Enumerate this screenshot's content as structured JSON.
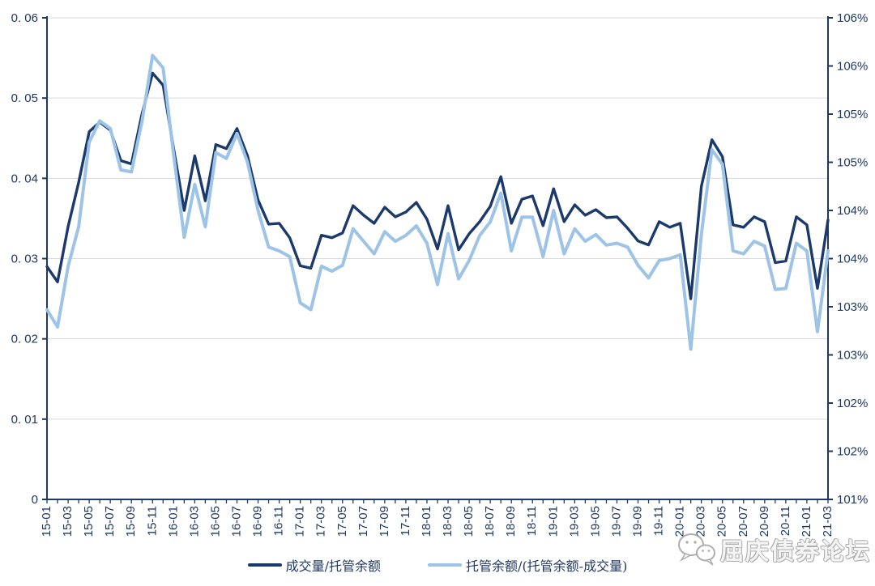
{
  "chart_data": {
    "type": "line",
    "title": "",
    "months": [
      "15-01",
      "15-02",
      "15-03",
      "15-04",
      "15-05",
      "15-06",
      "15-07",
      "15-08",
      "15-09",
      "15-10",
      "15-11",
      "15-12",
      "16-01",
      "16-02",
      "16-03",
      "16-04",
      "16-05",
      "16-06",
      "16-07",
      "16-08",
      "16-09",
      "16-10",
      "16-11",
      "16-12",
      "17-01",
      "17-02",
      "17-03",
      "17-04",
      "17-05",
      "17-06",
      "17-07",
      "17-08",
      "17-09",
      "17-10",
      "17-11",
      "17-12",
      "18-01",
      "18-02",
      "18-03",
      "18-04",
      "18-05",
      "18-06",
      "18-07",
      "18-08",
      "18-09",
      "18-10",
      "18-11",
      "18-12",
      "19-01",
      "19-02",
      "19-03",
      "19-04",
      "19-05",
      "19-06",
      "19-07",
      "19-08",
      "19-09",
      "19-10",
      "19-11",
      "19-12",
      "20-01",
      "20-02",
      "20-03",
      "20-04",
      "20-05",
      "20-06",
      "20-07",
      "20-08",
      "20-09",
      "20-10",
      "20-11",
      "20-12",
      "21-01",
      "21-02",
      "21-03"
    ],
    "x_tick_labels_shown": [
      "15-01",
      "15-03",
      "15-05",
      "15-07",
      "15-09",
      "15-11",
      "16-01",
      "16-03",
      "16-05",
      "16-07",
      "16-09",
      "16-11",
      "17-01",
      "17-03",
      "17-05",
      "17-07",
      "17-09",
      "17-11",
      "18-01",
      "18-03",
      "18-05",
      "18-07",
      "18-09",
      "18-11",
      "19-01",
      "19-03",
      "19-05",
      "19-07",
      "19-09",
      "19-11",
      "20-01",
      "20-03",
      "20-05",
      "20-07",
      "20-09",
      "20-11",
      "21-01",
      "21-03"
    ],
    "series": [
      {
        "name": "成交量/托管余额",
        "axis": "left",
        "color": "#1B3A6B",
        "values": [
          0.029,
          0.0271,
          0.034,
          0.0395,
          0.0458,
          0.047,
          0.046,
          0.0422,
          0.0418,
          0.048,
          0.0531,
          0.0516,
          0.0437,
          0.036,
          0.0428,
          0.0372,
          0.0442,
          0.0437,
          0.0462,
          0.0428,
          0.0373,
          0.0343,
          0.0344,
          0.0326,
          0.0291,
          0.0288,
          0.0329,
          0.0326,
          0.0332,
          0.0366,
          0.0354,
          0.0344,
          0.0364,
          0.0352,
          0.0358,
          0.037,
          0.0349,
          0.0312,
          0.0366,
          0.0311,
          0.0331,
          0.0346,
          0.0365,
          0.0402,
          0.0344,
          0.0374,
          0.0378,
          0.0341,
          0.0387,
          0.0346,
          0.0367,
          0.0354,
          0.0361,
          0.0351,
          0.0352,
          0.0338,
          0.0322,
          0.0317,
          0.0346,
          0.0339,
          0.0344,
          0.025,
          0.039,
          0.0448,
          0.0427,
          0.0342,
          0.0339,
          0.0352,
          0.0346,
          0.0295,
          0.0297,
          0.0352,
          0.0342,
          0.0263,
          0.0348
        ]
      },
      {
        "name": "托管余额/(托管余额-成交量)",
        "axis": "right",
        "color": "#9DC3E6",
        "values": [
          102.97,
          102.79,
          103.42,
          103.83,
          104.71,
          104.93,
          104.85,
          104.42,
          104.4,
          104.92,
          105.61,
          105.48,
          104.58,
          103.72,
          104.27,
          103.83,
          104.6,
          104.54,
          104.8,
          104.5,
          104.0,
          103.62,
          103.58,
          103.52,
          103.04,
          102.97,
          103.42,
          103.37,
          103.43,
          103.81,
          103.68,
          103.55,
          103.78,
          103.68,
          103.74,
          103.84,
          103.66,
          103.23,
          103.76,
          103.29,
          103.48,
          103.74,
          103.88,
          104.18,
          103.58,
          103.93,
          103.93,
          103.52,
          104.0,
          103.55,
          103.81,
          103.68,
          103.75,
          103.64,
          103.66,
          103.62,
          103.43,
          103.3,
          103.48,
          103.5,
          103.54,
          102.56,
          103.75,
          104.63,
          104.48,
          103.58,
          103.55,
          103.68,
          103.63,
          103.18,
          103.19,
          103.66,
          103.58,
          102.74,
          103.58
        ]
      }
    ],
    "left_axis": {
      "min": 0,
      "max": 0.06,
      "step": 0.01,
      "tick_labels_top_to_bottom": [
        "0. 06",
        "0. 05",
        "0. 04",
        "0. 03",
        "0. 02",
        "0. 01",
        "0"
      ]
    },
    "right_axis": {
      "min": 101,
      "max": 106,
      "step": 0.5,
      "tick_labels_top_to_bottom": [
        "106%",
        "106%",
        "105%",
        "105%",
        "104%",
        "104%",
        "103%",
        "103%",
        "102%",
        "102%",
        "101%"
      ]
    },
    "grid": "horizontal",
    "legend_position": "bottom-center",
    "colors": {
      "axis": "#1F3864",
      "gridline": "#D9D9D9",
      "label_text": "#1F3864"
    }
  },
  "legend": {
    "series1_label": "成交量/托管余额",
    "series2_label": "托管余额/(托管余额-成交量)"
  },
  "watermark": {
    "icon": "wechat-icon",
    "text": "屈庆债券论坛"
  }
}
